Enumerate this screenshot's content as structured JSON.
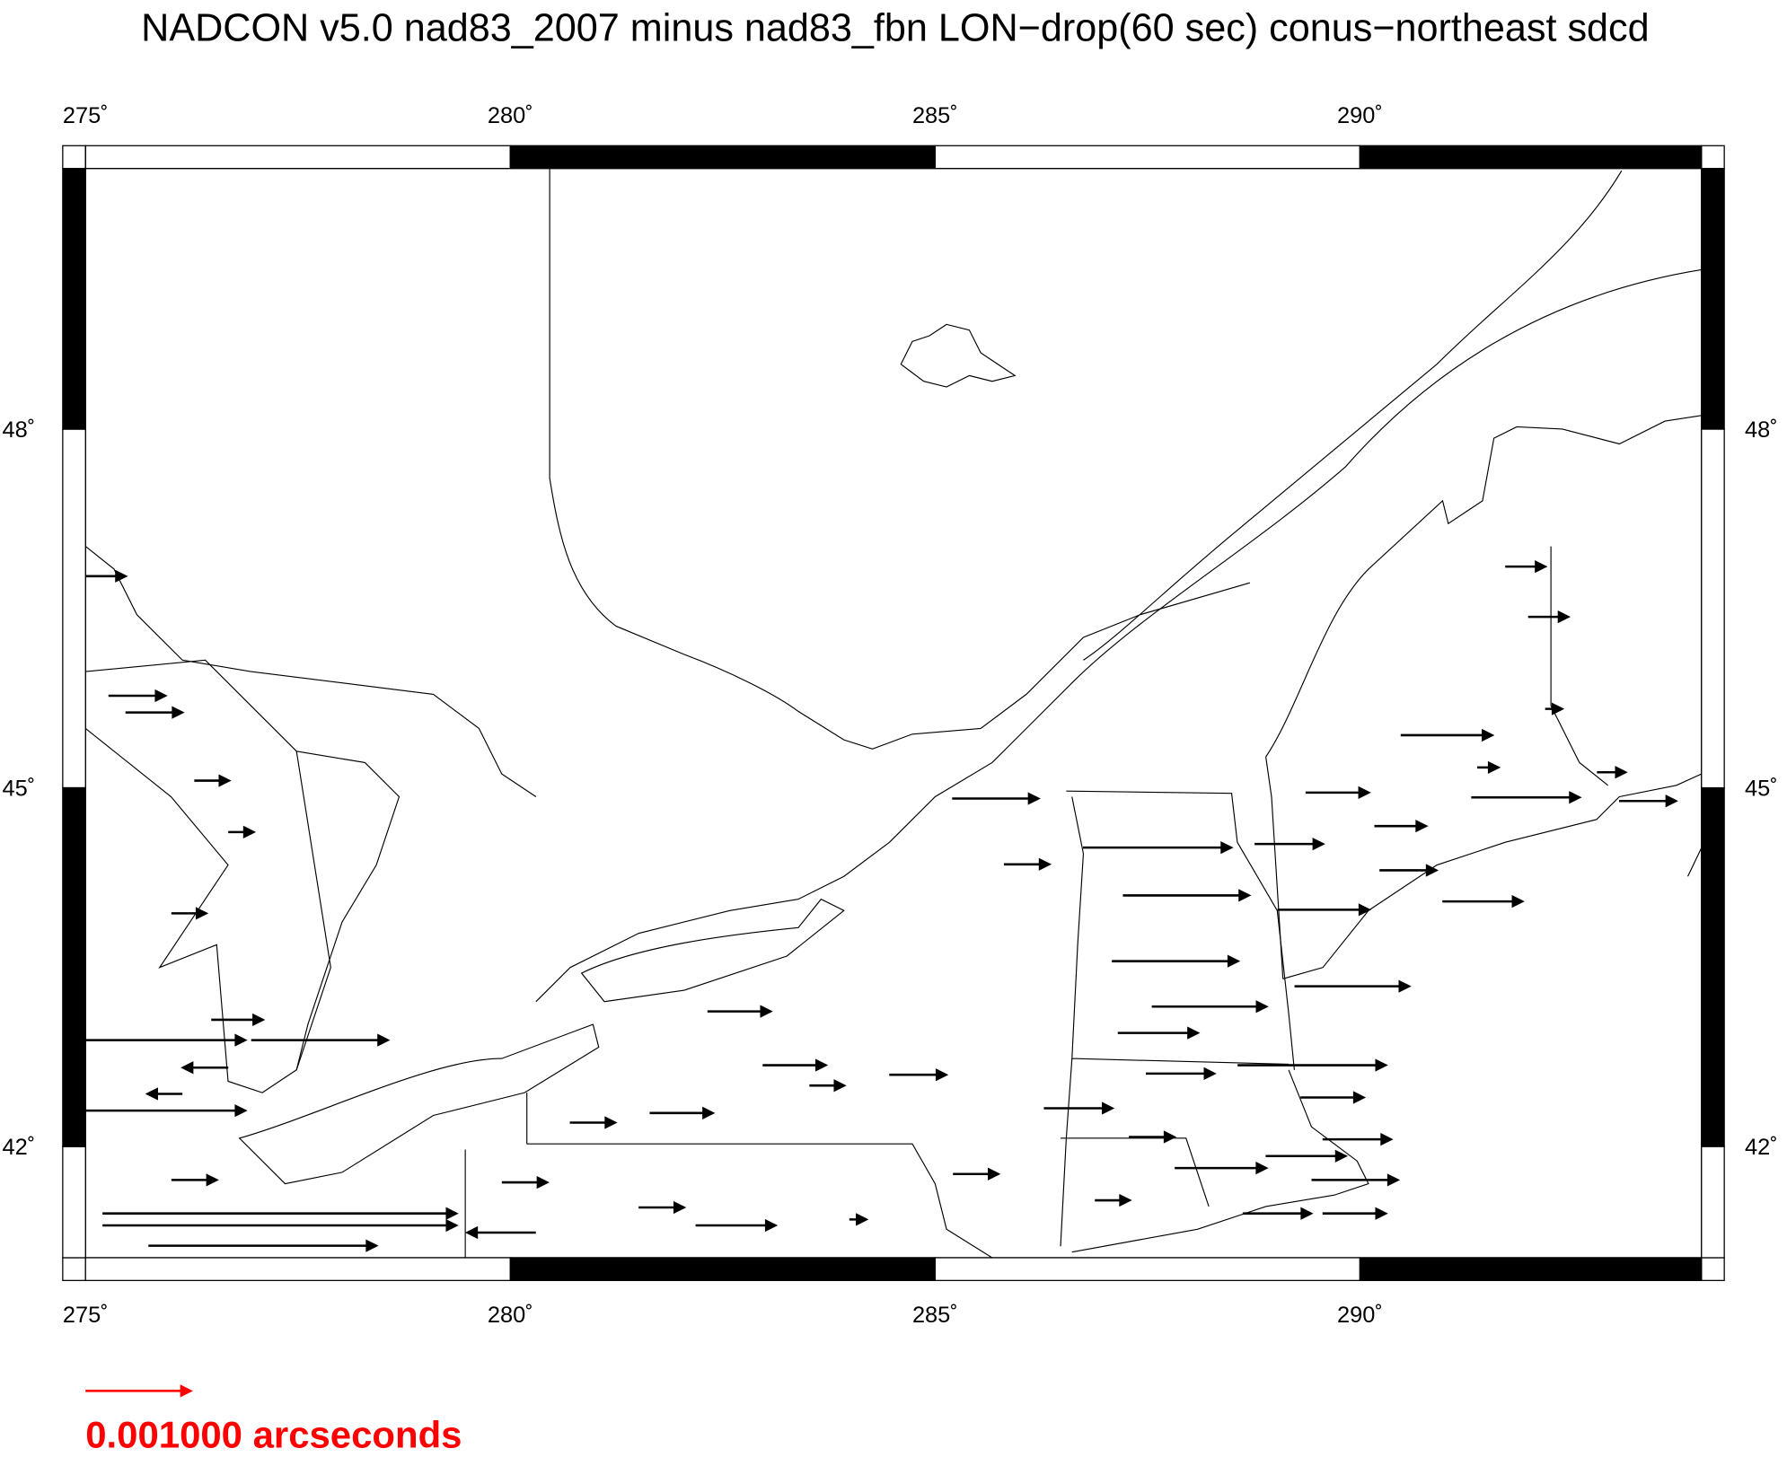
{
  "chart_data": {
    "type": "vector-map",
    "title": "NADCON v5.0 nad83_2007 minus nad83_fbn LON−drop(60 sec) conus−northeast sdcd",
    "xlim": [
      275,
      294.02
    ],
    "ylim": [
      41.07,
      50.18
    ],
    "xticks": [
      {
        "value": 275,
        "label": "275˚"
      },
      {
        "value": 280,
        "label": "280˚"
      },
      {
        "value": 285,
        "label": "285˚"
      },
      {
        "value": 290,
        "label": "290˚"
      }
    ],
    "yticks": [
      {
        "value": 42,
        "label": "42˚"
      },
      {
        "value": 45,
        "label": "45˚"
      },
      {
        "value": 48,
        "label": "48˚"
      }
    ],
    "vectors": {
      "color": "#000000",
      "lon": [
        275.0,
        275.27,
        275.47,
        276.28,
        276.68,
        276.01,
        276.48,
        276.95,
        275.0,
        275.0,
        275.2,
        275.2,
        275.74,
        276.01,
        276.68,
        276.14,
        279.9,
        280.3,
        282.18,
        281.51,
        281.64,
        280.7,
        282.32,
        282.97,
        283.52,
        284.46,
        283.99,
        285.21,
        285.2,
        285.81,
        286.74,
        287.21,
        287.08,
        287.55,
        287.15,
        287.48,
        286.28,
        287.28,
        287.82,
        286.88,
        288.62,
        288.89,
        288.76,
        289.36,
        289.03,
        289.23,
        288.56,
        289.3,
        289.56,
        289.43,
        289.56,
        290.23,
        290.17,
        290.97,
        290.48,
        291.31,
        291.71,
        291.98,
        292.18,
        291.38,
        292.79,
        293.05
      ],
      "lat": [
        46.77,
        45.77,
        45.63,
        45.06,
        44.63,
        43.95,
        43.06,
        42.89,
        42.89,
        42.3,
        41.44,
        41.34,
        41.17,
        41.72,
        42.66,
        42.44,
        41.7,
        41.28,
        41.34,
        41.49,
        42.28,
        42.2,
        43.13,
        42.68,
        42.51,
        42.6,
        41.39,
        41.77,
        44.91,
        44.36,
        44.5,
        44.1,
        43.55,
        43.17,
        42.95,
        42.61,
        42.32,
        42.08,
        41.82,
        41.55,
        41.44,
        41.92,
        44.53,
        44.96,
        43.98,
        43.34,
        42.68,
        42.41,
        42.06,
        41.72,
        41.44,
        44.31,
        44.68,
        44.05,
        45.44,
        44.92,
        46.85,
        46.43,
        45.66,
        45.17,
        45.13,
        44.89
      ],
      "dlon": [
        0.00038,
        0.00054,
        0.00054,
        0.00033,
        0.00024,
        0.00033,
        0.00049,
        0.0013,
        0.00152,
        0.00152,
        0.00337,
        0.00337,
        0.00217,
        0.00043,
        -0.00043,
        -0.00033,
        0.00043,
        -0.00065,
        0.00076,
        0.00043,
        0.0006,
        0.00043,
        0.0006,
        0.0006,
        0.00033,
        0.00054,
        0.00016,
        0.00043,
        0.00082,
        0.00043,
        0.00141,
        0.0012,
        0.0012,
        0.00109,
        0.00076,
        0.00065,
        0.00065,
        0.00043,
        0.00087,
        0.00033,
        0.00065,
        0.00076,
        0.00065,
        0.0006,
        0.00087,
        0.00109,
        0.00141,
        0.0006,
        0.00065,
        0.00082,
        0.0006,
        0.00054,
        0.00049,
        0.00076,
        0.00087,
        0.00103,
        0.00038,
        0.00038,
        0.00016,
        0.0002,
        0.00027,
        0.00054
      ]
    },
    "scale": {
      "value": 0.001,
      "label": "0.001000 arcseconds",
      "color": "#ff0000"
    }
  }
}
